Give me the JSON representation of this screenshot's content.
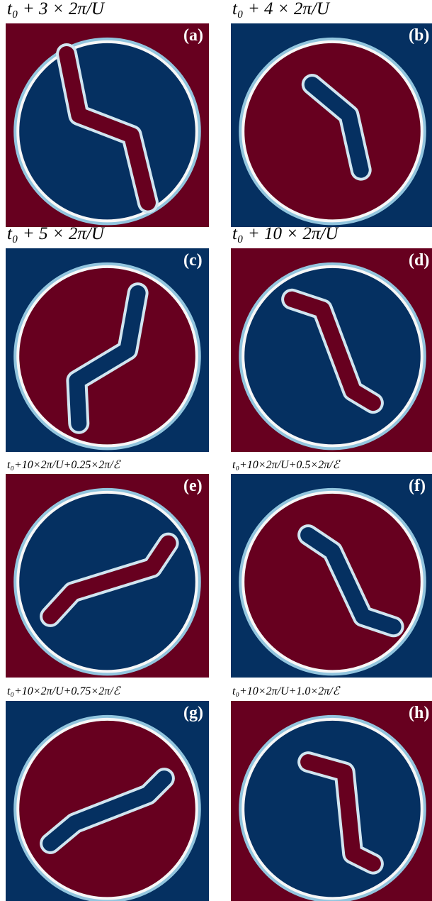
{
  "panels": [
    {
      "title": "t₀ + 3 × 2π/U",
      "label": "(a)"
    },
    {
      "title": "t₀ + 4 × 2π/U",
      "label": "(b)"
    },
    {
      "title": "t₀ + 5 × 2π/U",
      "label": "(c)"
    },
    {
      "title": "t₀ + 10 × 2π/U",
      "label": "(d)"
    },
    {
      "title": "t₀+10×2π/U+0.25×2π/ℰ",
      "label": "(e)"
    },
    {
      "title": "t₀+10×2π/U+0.5×2π/ℰ",
      "label": "(f)"
    },
    {
      "title": "t₀+10×2π/U+0.75×2π/ℰ",
      "label": "(g)"
    },
    {
      "title": "t₀+10×2π/U+1.0×2π/ℰ",
      "label": "(h)"
    }
  ]
}
